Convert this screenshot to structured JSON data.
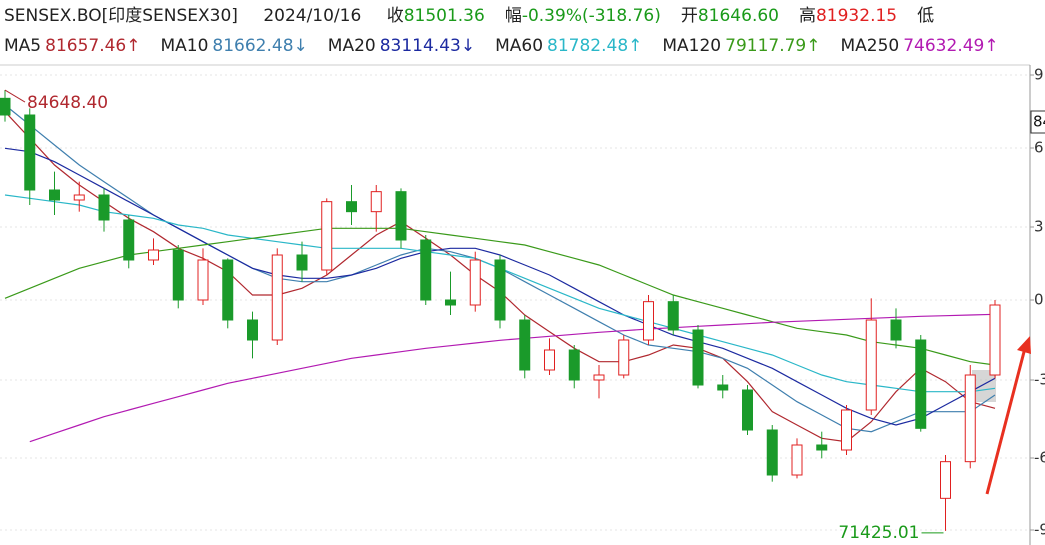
{
  "header": {
    "symbol": "SENSEX.BO[印度SENSEX30]",
    "date": "2024/10/16",
    "items": [
      {
        "label": "收",
        "value": "81501.36"
      },
      {
        "label": "幅",
        "value": "-0.39%(-318.76)"
      },
      {
        "label": "开",
        "value": "81646.60"
      },
      {
        "label": "高",
        "value": "81932.15"
      },
      {
        "label": "低"
      }
    ]
  },
  "chart_data": {
    "type": "candlestick",
    "ylim": [
      71000,
      85400
    ],
    "yticks": [
      {
        "value": 85100,
        "label": "9"
      },
      {
        "value": 82910,
        "label": "6"
      },
      {
        "value": 80540,
        "label": "3"
      },
      {
        "value": 78350,
        "label": "0"
      },
      {
        "value": 75950,
        "label": "-3"
      },
      {
        "value": 73610,
        "label": "-6"
      },
      {
        "value": 71450,
        "label": "-9"
      }
    ],
    "price_marker": {
      "value": 83690,
      "label": "84"
    },
    "up_color": "#e02020",
    "down_color": "#1a9a2a",
    "grid": true,
    "open": [
      84400,
      83900,
      81650,
      81350,
      81500,
      80750,
      79550,
      79850,
      78350,
      79550,
      77750,
      77150,
      79700,
      79250,
      81300,
      81000,
      81600,
      80150,
      78350,
      78200,
      79550,
      77750,
      76250,
      76850,
      75950,
      76100,
      77150,
      78300,
      77450,
      75800,
      75650,
      74450,
      73100,
      74000,
      73850,
      75050,
      77750,
      77150,
      72400,
      73500,
      76100
    ],
    "high": [
      84648.4,
      84100,
      82200,
      81900,
      81700,
      80900,
      80200,
      80000,
      79900,
      79600,
      78000,
      79900,
      80100,
      81400,
      81800,
      81800,
      81700,
      80300,
      79200,
      79800,
      79700,
      77900,
      77200,
      77000,
      76400,
      77300,
      78500,
      78500,
      77600,
      76100,
      75800,
      74600,
      74200,
      74400,
      75200,
      78400,
      78100,
      77300,
      73700,
      76400,
      78350
    ],
    "low": [
      83700,
      81200,
      80900,
      81000,
      80400,
      79300,
      79400,
      78100,
      78200,
      77500,
      76600,
      77000,
      78900,
      79100,
      80600,
      80400,
      79900,
      78200,
      77900,
      78000,
      77500,
      76000,
      76100,
      75700,
      75400,
      76000,
      77000,
      77300,
      75700,
      75400,
      74300,
      72900,
      73000,
      73600,
      73700,
      74900,
      76900,
      74400,
      71425.01,
      73300,
      76000
    ],
    "close": [
      83900,
      81650,
      81350,
      81500,
      80750,
      79550,
      79850,
      78350,
      79550,
      77750,
      77150,
      79700,
      79250,
      81300,
      81000,
      81600,
      80150,
      78350,
      78200,
      79550,
      77750,
      76250,
      76850,
      75950,
      76100,
      77150,
      78300,
      77450,
      75800,
      75650,
      74450,
      73100,
      74000,
      73850,
      75050,
      77750,
      77150,
      74500,
      73500,
      76100,
      78200
    ],
    "annotations": [
      {
        "value": 84648.4,
        "label": "84648.40"
      },
      {
        "value": 71425.01,
        "label": "71425.01"
      }
    ],
    "series": [
      {
        "name": "MA5",
        "last_label": "81657.46↑",
        "color": "#b0282f",
        "values": [
          84000,
          83200,
          82400,
          81800,
          81300,
          80800,
          80400,
          79900,
          79600,
          79200,
          78500,
          78500,
          78700,
          79100,
          79700,
          80300,
          80700,
          80200,
          79700,
          79100,
          78600,
          77900,
          77400,
          76900,
          76500,
          76500,
          76700,
          77000,
          76900,
          76600,
          75900,
          75000,
          74600,
          74200,
          74100,
          74700,
          75600,
          76300,
          75900,
          75300,
          75100
        ]
      },
      {
        "name": "MA10",
        "last_label": "81662.48↓",
        "color": "#3f7fae",
        "values": [
          84200,
          83600,
          83000,
          82400,
          81900,
          81400,
          80900,
          80500,
          80100,
          79700,
          79300,
          79000,
          78900,
          78900,
          79100,
          79400,
          79700,
          79900,
          79800,
          79600,
          79300,
          78900,
          78500,
          78100,
          77700,
          77300,
          77000,
          76900,
          76800,
          76600,
          76300,
          75800,
          75300,
          74900,
          74500,
          74400,
          74700,
          75000,
          75000,
          75000,
          75500
        ]
      },
      {
        "name": "MA20",
        "last_label": "83114.43↓",
        "color": "#1c2aa0",
        "values": [
          82900,
          82800,
          82500,
          82100,
          81700,
          81300,
          80900,
          80500,
          80100,
          79700,
          79300,
          79100,
          79000,
          79000,
          79100,
          79300,
          79600,
          79800,
          79900,
          79900,
          79700,
          79400,
          79100,
          78700,
          78300,
          77900,
          77600,
          77300,
          77100,
          76900,
          76600,
          76300,
          75900,
          75500,
          75100,
          74800,
          74600,
          74800,
          75200,
          75600,
          76000
        ]
      },
      {
        "name": "MA60",
        "last_label": "81782.48↑",
        "color": "#2ab7c8",
        "values": [
          81500,
          81400,
          81300,
          81200,
          81000,
          80900,
          80800,
          80600,
          80500,
          80300,
          80200,
          80100,
          80000,
          79900,
          79900,
          79900,
          79900,
          79800,
          79700,
          79600,
          79300,
          79000,
          78700,
          78400,
          78100,
          77900,
          77700,
          77500,
          77300,
          77100,
          76900,
          76700,
          76400,
          76100,
          75900,
          75800,
          75700,
          75600,
          75600,
          75600,
          75700
        ]
      },
      {
        "name": "MA120",
        "last_label": "79117.79↑",
        "color": "#3a9a1a",
        "values": [
          78400,
          78700,
          79000,
          79300,
          79500,
          79700,
          79800,
          79900,
          80000,
          80100,
          80200,
          80300,
          80400,
          80500,
          80500,
          80500,
          80500,
          80400,
          80300,
          80200,
          80100,
          80000,
          79800,
          79600,
          79400,
          79100,
          78800,
          78500,
          78300,
          78100,
          77900,
          77700,
          77500,
          77400,
          77300,
          77100,
          77000,
          76900,
          76700,
          76500,
          76400
        ]
      },
      {
        "name": "MA250",
        "last_label": "74632.49↑",
        "color": "#b21ab2",
        "values": [
          null,
          74100,
          74350,
          74600,
          74850,
          75050,
          75250,
          75450,
          75650,
          75850,
          76000,
          76150,
          76300,
          76450,
          76600,
          76700,
          76800,
          76900,
          76980,
          77060,
          77140,
          77200,
          77260,
          77320,
          77380,
          77430,
          77480,
          77520,
          77560,
          77600,
          77640,
          77680,
          77710,
          77740,
          77770,
          77800,
          77830,
          77860,
          77880,
          77900,
          77920
        ]
      }
    ]
  }
}
